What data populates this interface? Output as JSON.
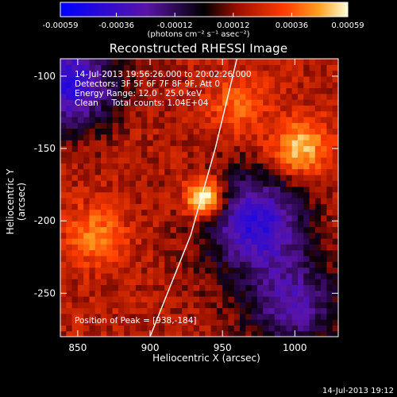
{
  "chart_data": {
    "type": "heatmap",
    "title": "Reconstructed RHESSI Image",
    "xlabel": "Heliocentric X (arcsec)",
    "ylabel": "Heliocentric Y (arcsec)",
    "xlim": [
      838,
      1030
    ],
    "ylim": [
      -280,
      -88
    ],
    "x_ticks": [
      850,
      900,
      950,
      1000
    ],
    "y_ticks": [
      -100,
      -150,
      -200,
      -250
    ],
    "colorbar": {
      "ticks": [
        "-0.00059",
        "-0.00036",
        "-0.00012",
        "0.00012",
        "0.00036",
        "0.00059"
      ],
      "units": "(photons cm⁻² s⁻¹ asec⁻²)",
      "range": [
        -0.00059,
        0.00059
      ]
    },
    "info_lines": [
      "14-Jul-2013 19:56:26.000 to 20:02:26.000",
      "Detectors: 3F 5F 6F 7F 8F 9F, Att 0",
      "Energy Range: 12.0 - 25.0 keV",
      "Clean     Total counts: 1.04E+04"
    ],
    "peak_label": "Position of Peak = [938,-184]",
    "peak": {
      "x": 938,
      "y": -184,
      "value": 0.00059
    },
    "secondary_sources": [
      {
        "x": 1003,
        "y": -150,
        "value": 0.00036
      },
      {
        "x": 862,
        "y": -210,
        "value": 0.00024
      },
      {
        "x": 960,
        "y": -120,
        "value": 0.0002
      }
    ],
    "negative_regions": [
      {
        "x": 845,
        "y": -105,
        "value": -0.00036
      },
      {
        "x": 975,
        "y": -200,
        "value": -0.0003
      },
      {
        "x": 1000,
        "y": -258,
        "value": -0.00024
      }
    ],
    "limb_curve": [
      [
        960,
        -88
      ],
      [
        945,
        -150
      ],
      [
        928,
        -210
      ],
      [
        912,
        -250
      ],
      [
        900,
        -280
      ]
    ],
    "footer": "14-Jul-2013 19:12"
  }
}
